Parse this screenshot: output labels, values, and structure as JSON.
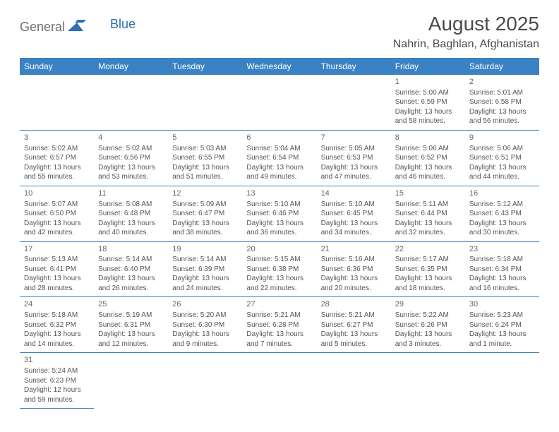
{
  "logo": {
    "text1": "General",
    "text2": "Blue"
  },
  "title": "August 2025",
  "location": "Nahrin, Baghlan, Afghanistan",
  "dayHeaders": [
    "Sunday",
    "Monday",
    "Tuesday",
    "Wednesday",
    "Thursday",
    "Friday",
    "Saturday"
  ],
  "colors": {
    "headerBg": "#3b82c4",
    "headerText": "#ffffff",
    "rowBorder": "#3b82c4",
    "bodyText": "#555555",
    "logoBlue": "#2e6fb4"
  },
  "weeks": [
    [
      null,
      null,
      null,
      null,
      null,
      {
        "d": "1",
        "sunrise": "5:00 AM",
        "sunset": "6:59 PM",
        "daylight": "13 hours and 58 minutes."
      },
      {
        "d": "2",
        "sunrise": "5:01 AM",
        "sunset": "6:58 PM",
        "daylight": "13 hours and 56 minutes."
      }
    ],
    [
      {
        "d": "3",
        "sunrise": "5:02 AM",
        "sunset": "6:57 PM",
        "daylight": "13 hours and 55 minutes."
      },
      {
        "d": "4",
        "sunrise": "5:02 AM",
        "sunset": "6:56 PM",
        "daylight": "13 hours and 53 minutes."
      },
      {
        "d": "5",
        "sunrise": "5:03 AM",
        "sunset": "6:55 PM",
        "daylight": "13 hours and 51 minutes."
      },
      {
        "d": "6",
        "sunrise": "5:04 AM",
        "sunset": "6:54 PM",
        "daylight": "13 hours and 49 minutes."
      },
      {
        "d": "7",
        "sunrise": "5:05 AM",
        "sunset": "6:53 PM",
        "daylight": "13 hours and 47 minutes."
      },
      {
        "d": "8",
        "sunrise": "5:06 AM",
        "sunset": "6:52 PM",
        "daylight": "13 hours and 46 minutes."
      },
      {
        "d": "9",
        "sunrise": "5:06 AM",
        "sunset": "6:51 PM",
        "daylight": "13 hours and 44 minutes."
      }
    ],
    [
      {
        "d": "10",
        "sunrise": "5:07 AM",
        "sunset": "6:50 PM",
        "daylight": "13 hours and 42 minutes."
      },
      {
        "d": "11",
        "sunrise": "5:08 AM",
        "sunset": "6:48 PM",
        "daylight": "13 hours and 40 minutes."
      },
      {
        "d": "12",
        "sunrise": "5:09 AM",
        "sunset": "6:47 PM",
        "daylight": "13 hours and 38 minutes."
      },
      {
        "d": "13",
        "sunrise": "5:10 AM",
        "sunset": "6:46 PM",
        "daylight": "13 hours and 36 minutes."
      },
      {
        "d": "14",
        "sunrise": "5:10 AM",
        "sunset": "6:45 PM",
        "daylight": "13 hours and 34 minutes."
      },
      {
        "d": "15",
        "sunrise": "5:11 AM",
        "sunset": "6:44 PM",
        "daylight": "13 hours and 32 minutes."
      },
      {
        "d": "16",
        "sunrise": "5:12 AM",
        "sunset": "6:43 PM",
        "daylight": "13 hours and 30 minutes."
      }
    ],
    [
      {
        "d": "17",
        "sunrise": "5:13 AM",
        "sunset": "6:41 PM",
        "daylight": "13 hours and 28 minutes."
      },
      {
        "d": "18",
        "sunrise": "5:14 AM",
        "sunset": "6:40 PM",
        "daylight": "13 hours and 26 minutes."
      },
      {
        "d": "19",
        "sunrise": "5:14 AM",
        "sunset": "6:39 PM",
        "daylight": "13 hours and 24 minutes."
      },
      {
        "d": "20",
        "sunrise": "5:15 AM",
        "sunset": "6:38 PM",
        "daylight": "13 hours and 22 minutes."
      },
      {
        "d": "21",
        "sunrise": "5:16 AM",
        "sunset": "6:36 PM",
        "daylight": "13 hours and 20 minutes."
      },
      {
        "d": "22",
        "sunrise": "5:17 AM",
        "sunset": "6:35 PM",
        "daylight": "13 hours and 18 minutes."
      },
      {
        "d": "23",
        "sunrise": "5:18 AM",
        "sunset": "6:34 PM",
        "daylight": "13 hours and 16 minutes."
      }
    ],
    [
      {
        "d": "24",
        "sunrise": "5:18 AM",
        "sunset": "6:32 PM",
        "daylight": "13 hours and 14 minutes."
      },
      {
        "d": "25",
        "sunrise": "5:19 AM",
        "sunset": "6:31 PM",
        "daylight": "13 hours and 12 minutes."
      },
      {
        "d": "26",
        "sunrise": "5:20 AM",
        "sunset": "6:30 PM",
        "daylight": "13 hours and 9 minutes."
      },
      {
        "d": "27",
        "sunrise": "5:21 AM",
        "sunset": "6:28 PM",
        "daylight": "13 hours and 7 minutes."
      },
      {
        "d": "28",
        "sunrise": "5:21 AM",
        "sunset": "6:27 PM",
        "daylight": "13 hours and 5 minutes."
      },
      {
        "d": "29",
        "sunrise": "5:22 AM",
        "sunset": "6:26 PM",
        "daylight": "13 hours and 3 minutes."
      },
      {
        "d": "30",
        "sunrise": "5:23 AM",
        "sunset": "6:24 PM",
        "daylight": "13 hours and 1 minute."
      }
    ],
    [
      {
        "d": "31",
        "sunrise": "5:24 AM",
        "sunset": "6:23 PM",
        "daylight": "12 hours and 59 minutes."
      },
      null,
      null,
      null,
      null,
      null,
      null
    ]
  ],
  "labels": {
    "sunrise": "Sunrise: ",
    "sunset": "Sunset: ",
    "daylight": "Daylight: "
  }
}
